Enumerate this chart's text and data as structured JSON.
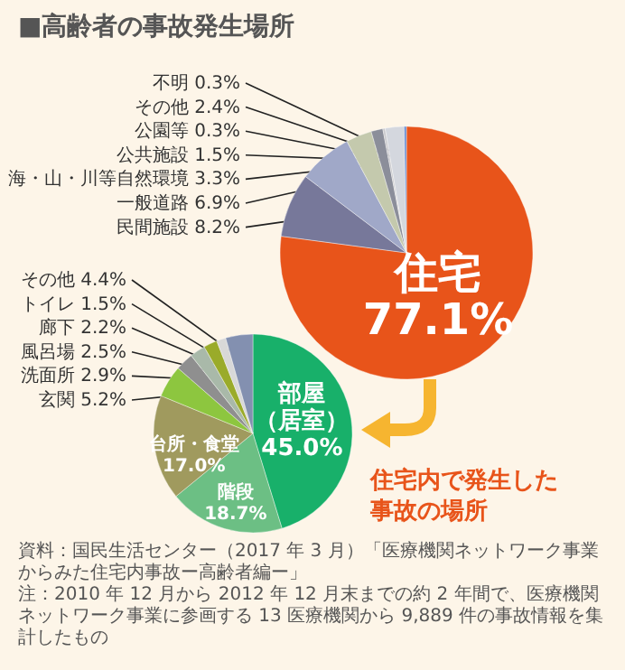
{
  "chart_data": [
    {
      "type": "pie",
      "title": "■高齢者の事故発生場所",
      "categories": [
        "住宅",
        "民間施設",
        "一般道路",
        "海・山・川等自然環境",
        "公共施設",
        "公園等",
        "その他",
        "不明"
      ],
      "values": [
        77.1,
        8.2,
        6.9,
        3.3,
        1.5,
        0.3,
        2.4,
        0.3
      ],
      "value_labels": [
        "77.1%",
        "8.2%",
        "6.9%",
        "3.3%",
        "1.5%",
        "0.3%",
        "2.4%",
        "0.3%"
      ],
      "colors": [
        "#e8541a",
        "#77789a",
        "#a0a8c8",
        "#c4c9ad",
        "#8b8e9a",
        "#c8c8cc",
        "#d4d7de",
        "#6e8fd0"
      ]
    },
    {
      "type": "pie",
      "subtitle": "住宅内で発生した事故の場所",
      "categories": [
        "部屋（居室）",
        "階段",
        "台所・食堂",
        "玄関",
        "洗面所",
        "風呂場",
        "廊下",
        "トイレ",
        "その他"
      ],
      "values": [
        45.0,
        18.7,
        17.0,
        5.2,
        2.9,
        2.5,
        2.2,
        1.5,
        4.4
      ],
      "value_labels": [
        "45.0%",
        "18.7%",
        "17.0%",
        "5.2%",
        "2.9%",
        "2.5%",
        "2.2%",
        "1.5%",
        "4.4%"
      ],
      "colors": [
        "#18b06a",
        "#6cbf84",
        "#a09a5e",
        "#8dc63f",
        "#8f8f8f",
        "#a9b9a9",
        "#9aab2a",
        "#d8d8d8",
        "#8390b0"
      ],
      "annotations": [
        "資料：国民生活センター（2017 年 3 月）「医療機関ネットワーク事業からみた住宅内事故ー高齢者編ー」",
        "注：2010 年 12 月から 2012 年 12 月末までの約 2 年間で、医療機関ネットワーク事業に参画する 13 医療機関から 9,889 件の事故情報を集計したもの"
      ]
    }
  ]
}
